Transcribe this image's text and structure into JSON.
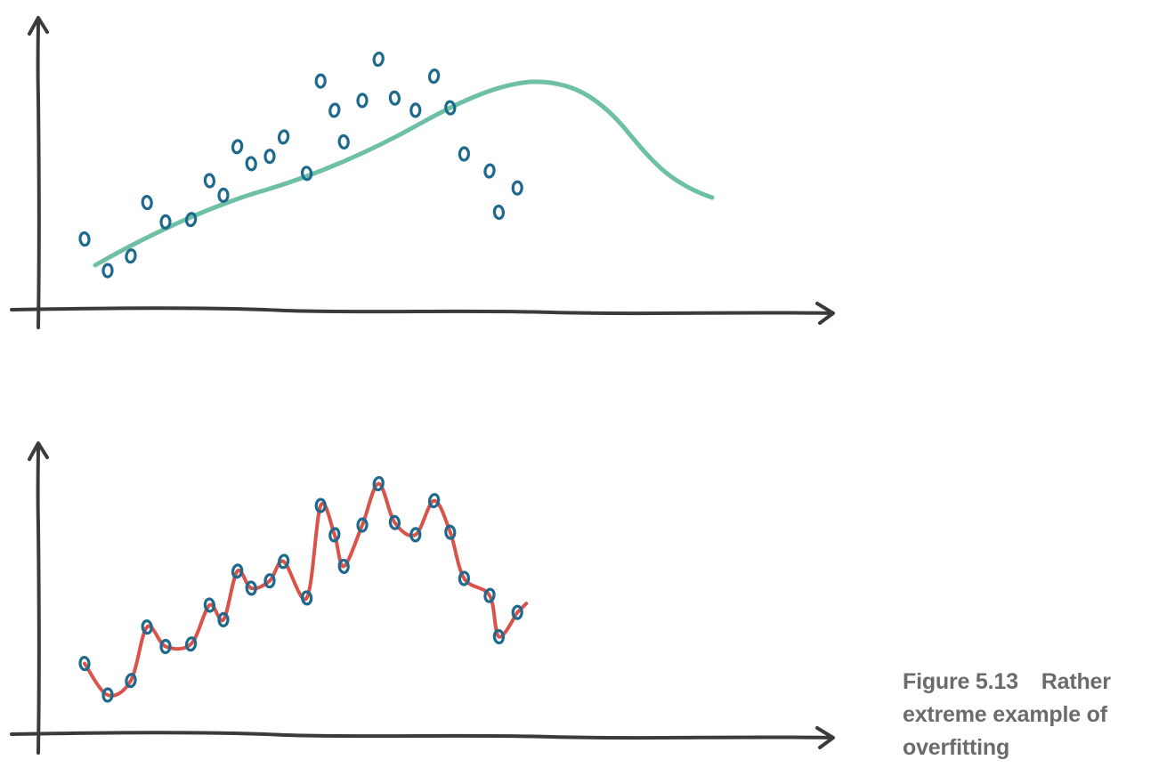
{
  "figure": {
    "number": "Figure 5.13",
    "caption": "Rather extreme example of overfitting"
  },
  "colors": {
    "axis": "#3b3b3b",
    "point": "#1f6a8c",
    "smooth_fit": "#6dbfa6",
    "overfit": "#d9534a"
  },
  "chart_data": [
    {
      "type": "scatter",
      "title": "",
      "xlabel": "",
      "ylabel": "",
      "fit": "smooth curve",
      "points": [
        [
          1.0,
          2.8
        ],
        [
          1.5,
          1.5
        ],
        [
          2.0,
          2.1
        ],
        [
          2.35,
          4.3
        ],
        [
          2.75,
          3.5
        ],
        [
          3.3,
          3.6
        ],
        [
          3.7,
          5.2
        ],
        [
          4.0,
          4.6
        ],
        [
          4.3,
          6.6
        ],
        [
          4.6,
          5.9
        ],
        [
          5.0,
          6.2
        ],
        [
          5.3,
          7.0
        ],
        [
          5.8,
          5.5
        ],
        [
          6.1,
          9.3
        ],
        [
          6.4,
          8.1
        ],
        [
          6.6,
          6.8
        ],
        [
          7.0,
          8.5
        ],
        [
          7.35,
          10.2
        ],
        [
          7.7,
          8.6
        ],
        [
          8.15,
          8.1
        ],
        [
          8.55,
          9.5
        ],
        [
          8.9,
          8.2
        ],
        [
          9.2,
          6.3
        ],
        [
          9.75,
          5.6
        ],
        [
          9.95,
          3.9
        ],
        [
          10.35,
          4.9
        ]
      ]
    },
    {
      "type": "scatter",
      "title": "",
      "xlabel": "",
      "ylabel": "",
      "fit": "overfitted curve through every point",
      "points": [
        [
          1.0,
          2.8
        ],
        [
          1.5,
          1.5
        ],
        [
          2.0,
          2.1
        ],
        [
          2.35,
          4.3
        ],
        [
          2.75,
          3.5
        ],
        [
          3.3,
          3.6
        ],
        [
          3.7,
          5.2
        ],
        [
          4.0,
          4.6
        ],
        [
          4.3,
          6.6
        ],
        [
          4.6,
          5.9
        ],
        [
          5.0,
          6.2
        ],
        [
          5.3,
          7.0
        ],
        [
          5.8,
          5.5
        ],
        [
          6.1,
          9.3
        ],
        [
          6.4,
          8.1
        ],
        [
          6.6,
          6.8
        ],
        [
          7.0,
          8.5
        ],
        [
          7.35,
          10.2
        ],
        [
          7.7,
          8.6
        ],
        [
          8.15,
          8.1
        ],
        [
          8.55,
          9.5
        ],
        [
          8.9,
          8.2
        ],
        [
          9.2,
          6.3
        ],
        [
          9.75,
          5.6
        ],
        [
          9.95,
          3.9
        ],
        [
          10.35,
          4.9
        ]
      ]
    }
  ]
}
